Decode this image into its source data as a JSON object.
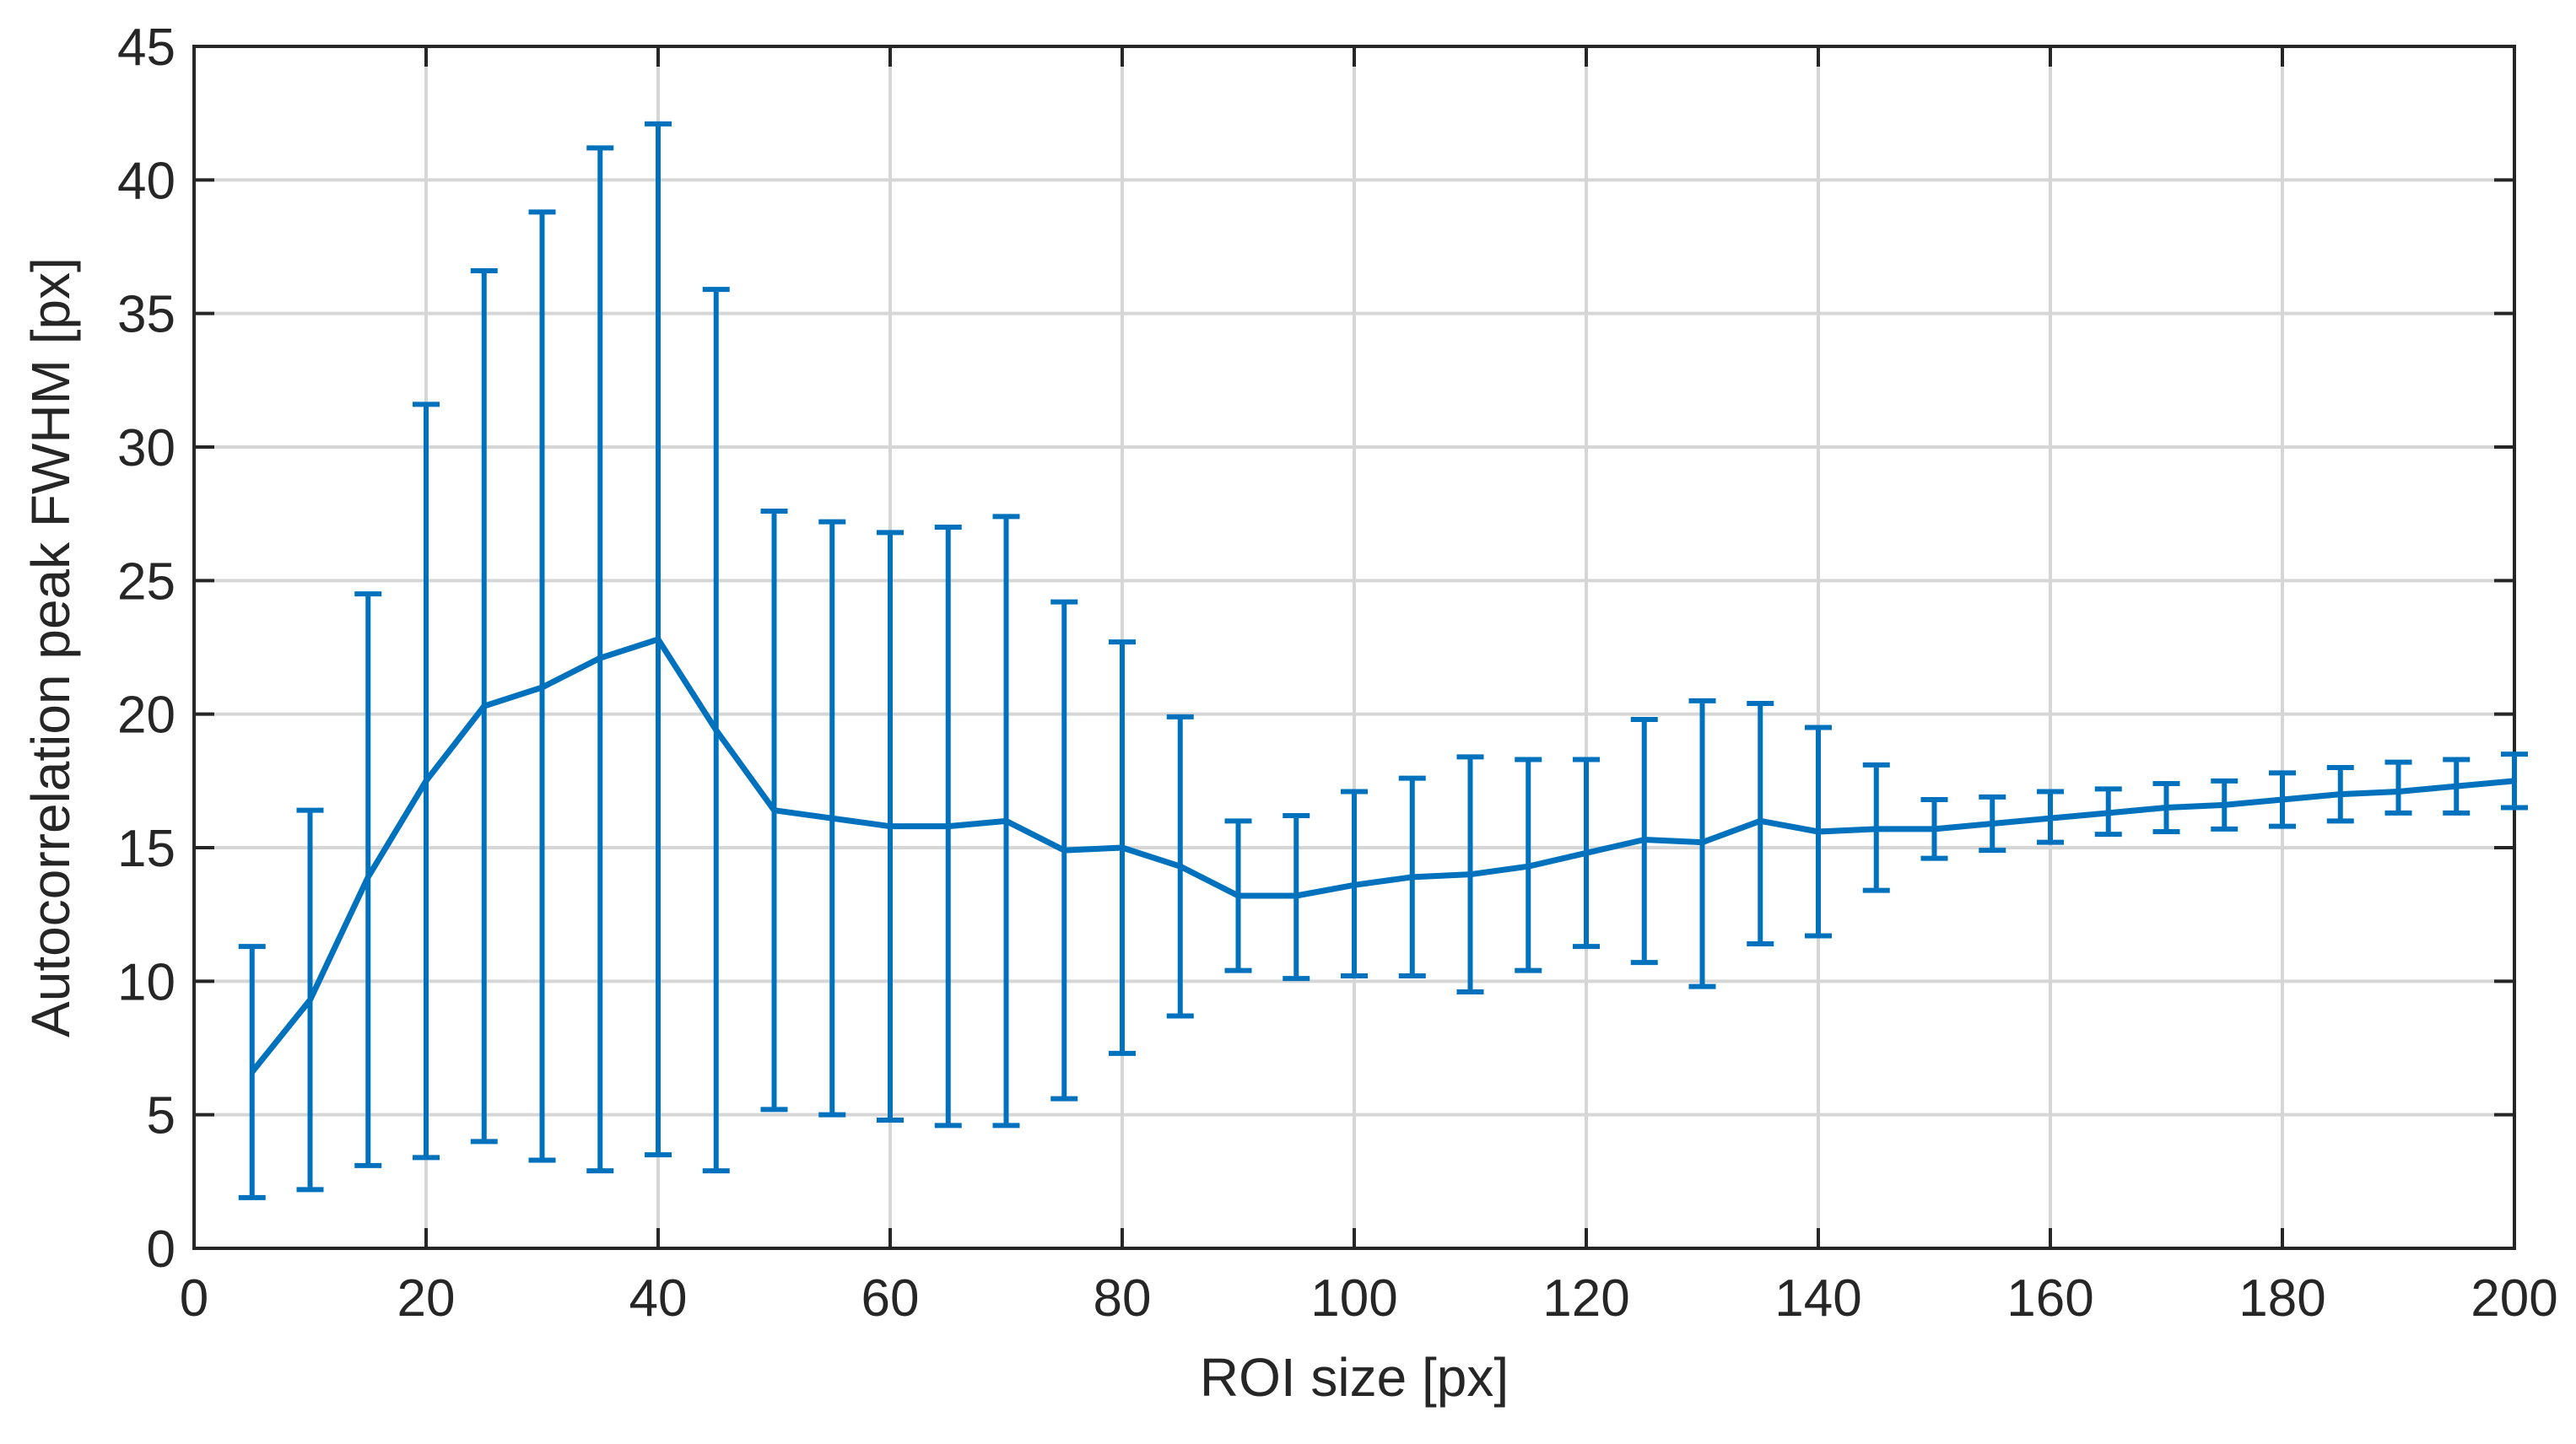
{
  "chart_data": {
    "type": "line",
    "title": "",
    "xlabel": "ROI size [px]",
    "ylabel": "Autocorrelation peak FWHM [px]",
    "xlim": [
      0,
      200
    ],
    "ylim": [
      0,
      45
    ],
    "xticks": [
      0,
      20,
      40,
      60,
      80,
      100,
      120,
      140,
      160,
      180,
      200
    ],
    "yticks": [
      0,
      5,
      10,
      15,
      20,
      25,
      30,
      35,
      40,
      45
    ],
    "grid": true,
    "color": "#0072BD",
    "series": [
      {
        "name": "FWHM",
        "x": [
          5,
          10,
          15,
          20,
          25,
          30,
          35,
          40,
          45,
          50,
          55,
          60,
          65,
          70,
          75,
          80,
          85,
          90,
          95,
          100,
          105,
          110,
          115,
          120,
          125,
          130,
          135,
          140,
          145,
          150,
          155,
          160,
          165,
          170,
          175,
          180,
          185,
          190,
          195,
          200
        ],
        "y": [
          6.6,
          9.3,
          13.9,
          17.5,
          20.3,
          21.0,
          22.1,
          22.8,
          19.4,
          16.4,
          16.1,
          15.8,
          15.8,
          16.0,
          14.9,
          15.0,
          14.3,
          13.2,
          13.2,
          13.6,
          13.9,
          14.0,
          14.3,
          14.8,
          15.3,
          15.2,
          16.0,
          15.6,
          15.7,
          15.7,
          15.9,
          16.1,
          16.3,
          16.5,
          16.6,
          16.8,
          17.0,
          17.1,
          17.3,
          17.5
        ],
        "lower": [
          1.9,
          2.2,
          3.1,
          3.4,
          4.0,
          3.3,
          2.9,
          3.5,
          2.9,
          5.2,
          5.0,
          4.8,
          4.6,
          4.6,
          5.6,
          7.3,
          8.7,
          10.4,
          10.1,
          10.2,
          10.2,
          9.6,
          10.4,
          11.3,
          10.7,
          9.8,
          11.4,
          11.7,
          13.4,
          14.6,
          14.9,
          15.2,
          15.5,
          15.6,
          15.7,
          15.8,
          16.0,
          16.3,
          16.3,
          16.5
        ],
        "upper": [
          11.3,
          16.4,
          24.5,
          31.6,
          36.6,
          38.8,
          41.2,
          42.1,
          35.9,
          27.6,
          27.2,
          26.8,
          27.0,
          27.4,
          24.2,
          22.7,
          19.9,
          16.0,
          16.2,
          17.1,
          17.6,
          18.4,
          18.3,
          18.3,
          19.8,
          20.5,
          20.4,
          19.5,
          18.1,
          16.8,
          16.9,
          17.1,
          17.2,
          17.4,
          17.5,
          17.8,
          18.0,
          18.2,
          18.3,
          18.5
        ]
      }
    ]
  }
}
